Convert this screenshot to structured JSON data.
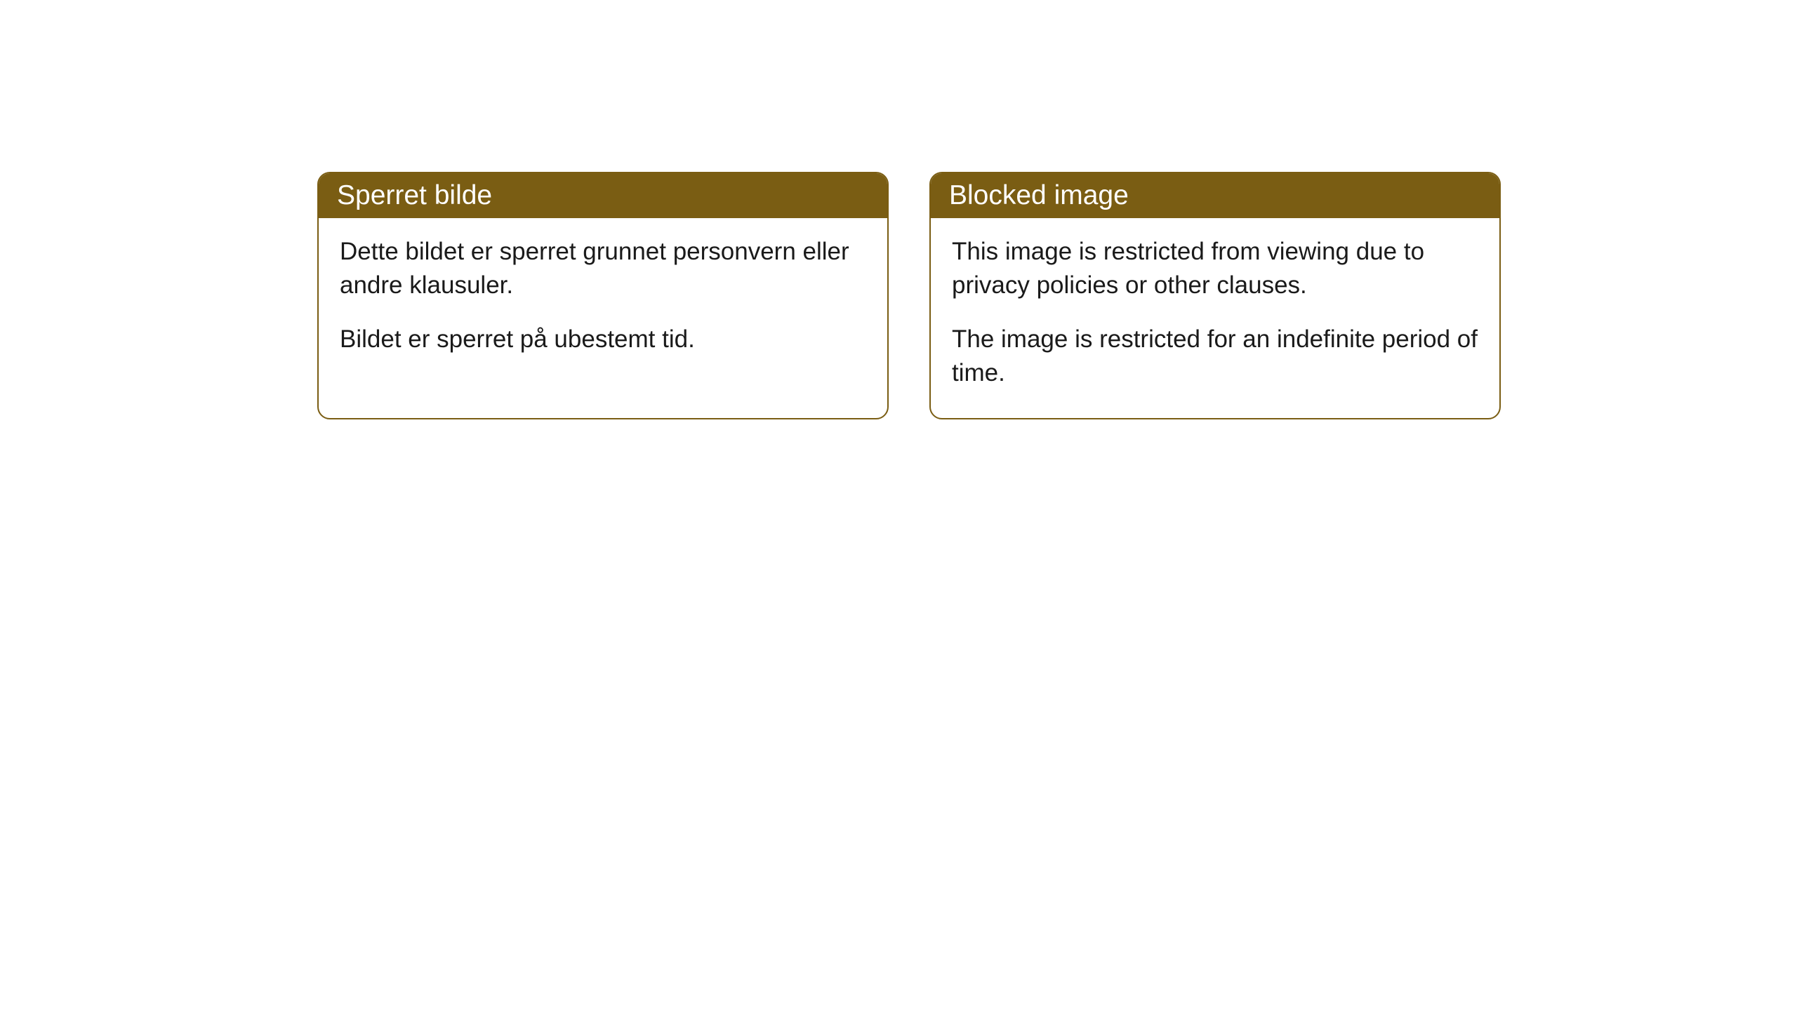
{
  "cards": [
    {
      "title": "Sperret bilde",
      "paragraph1": "Dette bildet er sperret grunnet personvern eller andre klausuler.",
      "paragraph2": "Bildet er sperret på ubestemt tid."
    },
    {
      "title": "Blocked image",
      "paragraph1": "This image is restricted from viewing due to privacy policies or other clauses.",
      "paragraph2": "The image is restricted for an indefinite period of time."
    }
  ],
  "style": {
    "header_bg_color": "#7a5d13",
    "header_text_color": "#ffffff",
    "border_color": "#7a5d13",
    "body_text_color": "#1a1a1a",
    "background_color": "#ffffff",
    "border_radius": 18,
    "title_fontsize": 39,
    "body_fontsize": 35
  }
}
